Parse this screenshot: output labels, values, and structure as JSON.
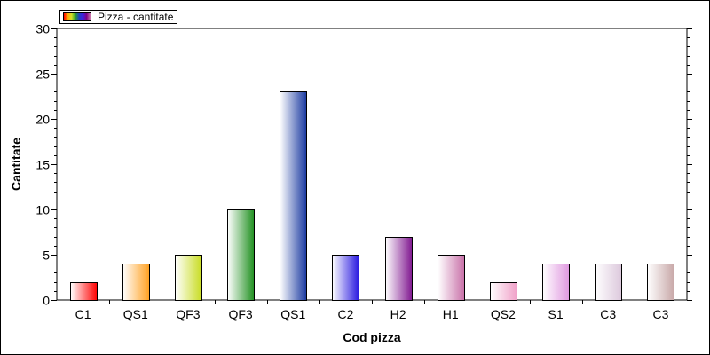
{
  "chart_data": {
    "type": "bar",
    "title": "",
    "xlabel": "Cod pizza",
    "ylabel": "Cantitate",
    "ylim": [
      0,
      30
    ],
    "yticks": [
      0,
      5,
      10,
      15,
      20,
      25,
      30
    ],
    "grid": false,
    "legend_position": "top-left",
    "categories": [
      "C1",
      "QS1",
      "QF3",
      "QF3",
      "QS1",
      "C2",
      "H2",
      "H1",
      "QS2",
      "S1",
      "C3",
      "C3"
    ],
    "series": [
      {
        "name": "Pizza - cantitate",
        "values": [
          2,
          4,
          5,
          10,
          23,
          5,
          7,
          5,
          2,
          4,
          4,
          4
        ]
      }
    ],
    "bar_colors": [
      "#ff0000",
      "#ffa020",
      "#c8dc20",
      "#209020",
      "#1838a0",
      "#2818e0",
      "#801890",
      "#c870a8",
      "#f0a0c8",
      "#e098e0",
      "#dcc8dc",
      "#c8a8a8"
    ]
  }
}
